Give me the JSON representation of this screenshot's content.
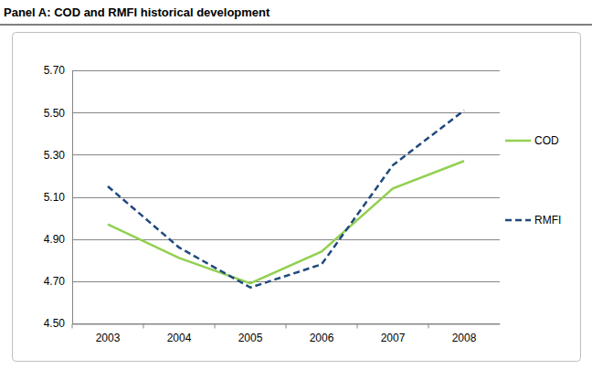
{
  "chart_data": {
    "type": "line",
    "title": "Panel A: COD and RMFI historical development",
    "categories": [
      "2003",
      "2004",
      "2005",
      "2006",
      "2007",
      "2008"
    ],
    "series": [
      {
        "name": "COD",
        "color": "#92d050",
        "line_style": "solid",
        "values": [
          4.97,
          4.81,
          4.69,
          4.84,
          5.14,
          5.27
        ]
      },
      {
        "name": "RMFI",
        "color": "#1f497d",
        "line_style": "dashed",
        "values": [
          5.15,
          4.86,
          4.67,
          4.78,
          5.25,
          5.51
        ]
      }
    ],
    "ylim": [
      4.5,
      5.7
    ],
    "yticks": [
      {
        "value": 4.5,
        "label": "4.50"
      },
      {
        "value": 4.7,
        "label": "4.70"
      },
      {
        "value": 4.9,
        "label": "4.90"
      },
      {
        "value": 5.1,
        "label": "5.10"
      },
      {
        "value": 5.3,
        "label": "5.30"
      },
      {
        "value": 5.5,
        "label": "5.50"
      },
      {
        "value": 5.7,
        "label": "5.70"
      }
    ],
    "grid": true,
    "legend": "right"
  }
}
